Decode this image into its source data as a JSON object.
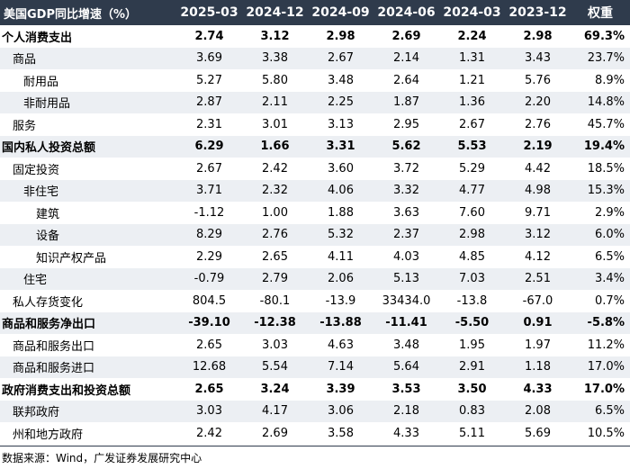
{
  "table": {
    "header": [
      "美国GDP同比增速（%）",
      "2025-03",
      "2024-12",
      "2024-09",
      "2024-06",
      "2024-03",
      "2023-12",
      "权重"
    ],
    "rows": [
      {
        "label": "个人消费支出",
        "level": 0,
        "bold": true,
        "values": [
          "2.74",
          "3.12",
          "2.98",
          "2.69",
          "2.24",
          "2.98",
          "69.3%"
        ]
      },
      {
        "label": "商品",
        "level": 1,
        "bold": false,
        "values": [
          "3.69",
          "3.38",
          "2.67",
          "2.14",
          "1.31",
          "3.43",
          "23.7%"
        ]
      },
      {
        "label": "耐用品",
        "level": 2,
        "bold": false,
        "values": [
          "5.27",
          "5.80",
          "3.48",
          "2.64",
          "1.21",
          "5.76",
          "8.9%"
        ]
      },
      {
        "label": "非耐用品",
        "level": 2,
        "bold": false,
        "values": [
          "2.87",
          "2.11",
          "2.25",
          "1.87",
          "1.36",
          "2.20",
          "14.8%"
        ]
      },
      {
        "label": "服务",
        "level": 1,
        "bold": false,
        "values": [
          "2.31",
          "3.01",
          "3.13",
          "2.95",
          "2.67",
          "2.76",
          "45.7%"
        ]
      },
      {
        "label": "国内私人投资总额",
        "level": 0,
        "bold": true,
        "values": [
          "6.29",
          "1.66",
          "3.31",
          "5.62",
          "5.53",
          "2.19",
          "19.4%"
        ]
      },
      {
        "label": "固定投资",
        "level": 1,
        "bold": false,
        "values": [
          "2.67",
          "2.42",
          "3.60",
          "3.72",
          "5.29",
          "4.42",
          "18.5%"
        ]
      },
      {
        "label": "非住宅",
        "level": 2,
        "bold": false,
        "values": [
          "3.71",
          "2.32",
          "4.06",
          "3.32",
          "4.77",
          "4.98",
          "15.3%"
        ]
      },
      {
        "label": "建筑",
        "level": 3,
        "bold": false,
        "values": [
          "-1.12",
          "1.00",
          "1.88",
          "3.63",
          "7.60",
          "9.71",
          "2.9%"
        ]
      },
      {
        "label": "设备",
        "level": 3,
        "bold": false,
        "values": [
          "8.29",
          "2.76",
          "5.32",
          "2.37",
          "2.98",
          "3.12",
          "6.0%"
        ]
      },
      {
        "label": "知识产权产品",
        "level": 3,
        "bold": false,
        "values": [
          "2.29",
          "2.65",
          "4.11",
          "4.03",
          "4.85",
          "4.12",
          "6.5%"
        ]
      },
      {
        "label": "住宅",
        "level": 2,
        "bold": false,
        "values": [
          "-0.79",
          "2.79",
          "2.06",
          "5.13",
          "7.03",
          "2.51",
          "3.4%"
        ]
      },
      {
        "label": "私人存货变化",
        "level": 1,
        "bold": false,
        "values": [
          "804.5",
          "-80.1",
          "-13.9",
          "33434.0",
          "-13.8",
          "-67.0",
          "0.7%"
        ]
      },
      {
        "label": "商品和服务净出口",
        "level": 0,
        "bold": true,
        "values": [
          "-39.10",
          "-12.38",
          "-13.88",
          "-11.41",
          "-5.50",
          "0.91",
          "-5.8%"
        ]
      },
      {
        "label": "商品和服务出口",
        "level": 1,
        "bold": false,
        "values": [
          "2.65",
          "3.03",
          "4.63",
          "3.48",
          "1.95",
          "1.97",
          "11.2%"
        ]
      },
      {
        "label": "商品和服务进口",
        "level": 1,
        "bold": false,
        "values": [
          "12.68",
          "5.54",
          "7.14",
          "5.64",
          "2.91",
          "1.18",
          "17.0%"
        ]
      },
      {
        "label": "政府消费支出和投资总额",
        "level": 0,
        "bold": true,
        "values": [
          "2.65",
          "3.24",
          "3.39",
          "3.53",
          "3.50",
          "4.33",
          "17.0%"
        ]
      },
      {
        "label": "联邦政府",
        "level": 1,
        "bold": false,
        "values": [
          "3.03",
          "4.17",
          "3.06",
          "2.18",
          "0.83",
          "2.08",
          "6.5%"
        ]
      },
      {
        "label": "州和地方政府",
        "level": 1,
        "bold": false,
        "values": [
          "2.42",
          "2.69",
          "3.58",
          "4.33",
          "5.11",
          "5.69",
          "10.5%"
        ]
      }
    ]
  },
  "source": "数据来源：Wind，广发证券发展研究中心",
  "colors": {
    "header_bg": "#2f3b4c",
    "header_text": "#ffffff",
    "stripe": "#eceff3"
  }
}
